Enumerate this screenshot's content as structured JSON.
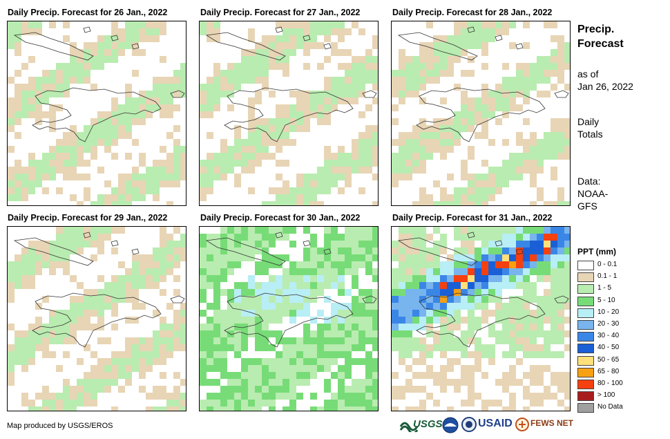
{
  "panels": [
    {
      "title": "Daily Precip. Forecast for 26 Jan., 2022",
      "pattern": "low"
    },
    {
      "title": "Daily Precip. Forecast for 27 Jan., 2022",
      "pattern": "low"
    },
    {
      "title": "Daily Precip. Forecast for 28 Jan., 2022",
      "pattern": "low"
    },
    {
      "title": "Daily Precip. Forecast for 29 Jan., 2022",
      "pattern": "low"
    },
    {
      "title": "Daily Precip. Forecast for 30 Jan., 2022",
      "pattern": "moderate"
    },
    {
      "title": "Daily Precip. Forecast for 31 Jan., 2022",
      "pattern": "heavy"
    }
  ],
  "side": {
    "title_line1": "Precip.",
    "title_line2": "Forecast",
    "asof_line1": "as of",
    "asof_line2": "Jan 26, 2022",
    "daily_line1": "Daily",
    "daily_line2": "Totals",
    "data_line1": "Data:",
    "data_line2": "NOAA-",
    "data_line3": "GFS"
  },
  "legend": {
    "title": "PPT (mm)",
    "items": [
      {
        "label": "0 - 0.1",
        "color": "#ffffff"
      },
      {
        "label": "0.1 - 1",
        "color": "#e8d5b5"
      },
      {
        "label": "1 - 5",
        "color": "#b9ecb0"
      },
      {
        "label": "5 - 10",
        "color": "#77dc77"
      },
      {
        "label": "10 - 20",
        "color": "#b8eef5"
      },
      {
        "label": "20 - 30",
        "color": "#78b4ee"
      },
      {
        "label": "30 - 40",
        "color": "#3a86e6"
      },
      {
        "label": "40 - 50",
        "color": "#1a5fd6"
      },
      {
        "label": "50 - 65",
        "color": "#ffe07a"
      },
      {
        "label": "65 - 80",
        "color": "#f7a012"
      },
      {
        "label": "80 - 100",
        "color": "#f54010"
      },
      {
        "label": "> 100",
        "color": "#a81e1e"
      },
      {
        "label": "No Data",
        "color": "#a0a0a0"
      }
    ]
  },
  "credit": "Map produced by USGS/EROS",
  "logos": {
    "usgs": "USGS",
    "usaid": "USAID",
    "fewsnet": "FEWS NET"
  }
}
